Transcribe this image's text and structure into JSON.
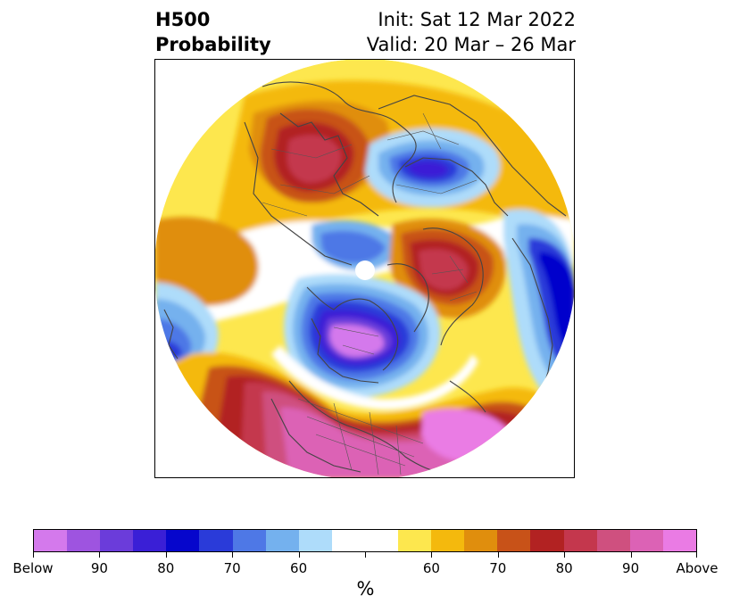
{
  "title": {
    "line1": "H500",
    "line2": "Probability"
  },
  "subtitle": {
    "line1": "Init: Sat 12 Mar 2022",
    "line2": "Valid: 20 Mar – 26 Mar"
  },
  "colorbar": {
    "colors": [
      "#d479ec",
      "#9e54e0",
      "#6b3cda",
      "#3a1fd6",
      "#0606cc",
      "#2a3bd9",
      "#4e78e6",
      "#74b1ee",
      "#aedcfa",
      "#ffffff",
      "#ffffff",
      "#fde74e",
      "#f4b90d",
      "#e08e0d",
      "#c85218",
      "#b22222",
      "#c4374d",
      "#cf507f",
      "#dc62b5",
      "#ea7be4"
    ],
    "tick_labels": [
      "Below",
      "90",
      "80",
      "70",
      "60",
      "",
      "60",
      "70",
      "80",
      "90",
      "Above"
    ],
    "unit": "%"
  },
  "map": {
    "projection": "north-polar-stereographic",
    "features": [
      "coastlines",
      "country-borders",
      "state-borders"
    ],
    "center_marker": "north-pole"
  }
}
